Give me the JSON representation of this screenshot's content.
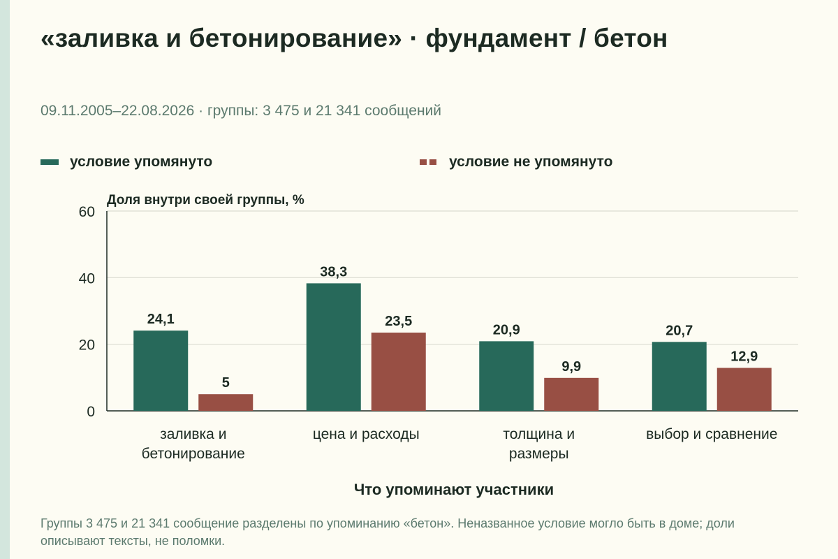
{
  "title": "«заливка и бетонирование» · фундамент / бетон",
  "subtitle": "09.11.2005–22.08.2026 · группы: 3 475 и 21 341 сообщений",
  "note": "Группы 3 475 и 21 341 сообщение разделены по упоминанию «бетон». Неназванное условие могло быть в доме; доли описывают тексты, не поломки.",
  "colors": {
    "background": "#fdfcf3",
    "series_mentioned": "#27695a",
    "series_not_mentioned": "#984f44",
    "side_strip": "#d3e6dd",
    "grid": "#dcdcd2",
    "text": "#1c2a22",
    "muted_text": "#5c7a6e"
  },
  "chart_data": {
    "type": "bar",
    "categories": [
      [
        "заливка и",
        "бетонирование"
      ],
      [
        "цена и расходы"
      ],
      [
        "толщина и",
        "размеры"
      ],
      [
        "выбор и сравнение"
      ]
    ],
    "series": [
      {
        "name": "условие упомянуто",
        "values": [
          24.1,
          38.3,
          20.9,
          20.7
        ],
        "labels": [
          "24,1",
          "38,3",
          "20,9",
          "20,7"
        ]
      },
      {
        "name": "условие не упомянуто",
        "values": [
          5,
          23.5,
          9.9,
          12.9
        ],
        "labels": [
          "5",
          "23,5",
          "9,9",
          "12,9"
        ]
      }
    ],
    "ylabel": "Доля внутри своей группы, %",
    "xlabel": "Что упоминают участники",
    "ylim": [
      0,
      60
    ],
    "yticks": [
      0,
      20,
      40,
      60
    ],
    "grid": true,
    "legend_placement": "top"
  }
}
